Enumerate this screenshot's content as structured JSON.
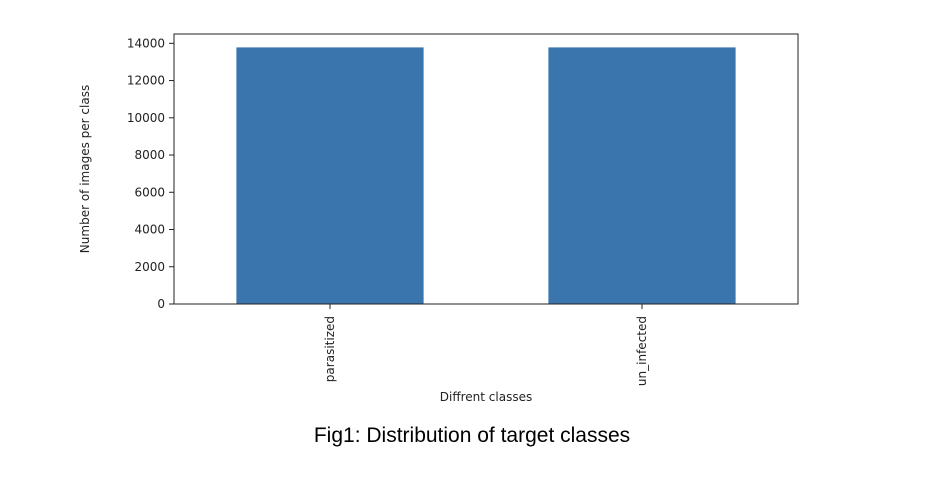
{
  "chart_data": {
    "type": "bar",
    "categories": [
      "parasitized",
      "un_infected"
    ],
    "values": [
      13780,
      13780
    ],
    "xlabel": "Diffrent classes",
    "ylabel": "Number of images per class",
    "ylim": [
      0,
      14500
    ],
    "yticks": [
      0,
      2000,
      4000,
      6000,
      8000,
      10000,
      12000,
      14000
    ],
    "ytick_labels": [
      "0",
      "2000",
      "4000",
      "6000",
      "8000",
      "10000",
      "12000",
      "14000"
    ],
    "bar_color": "#3a75ae",
    "grid": false,
    "legend": "none"
  },
  "caption": "Fig1: Distribution of target classes"
}
